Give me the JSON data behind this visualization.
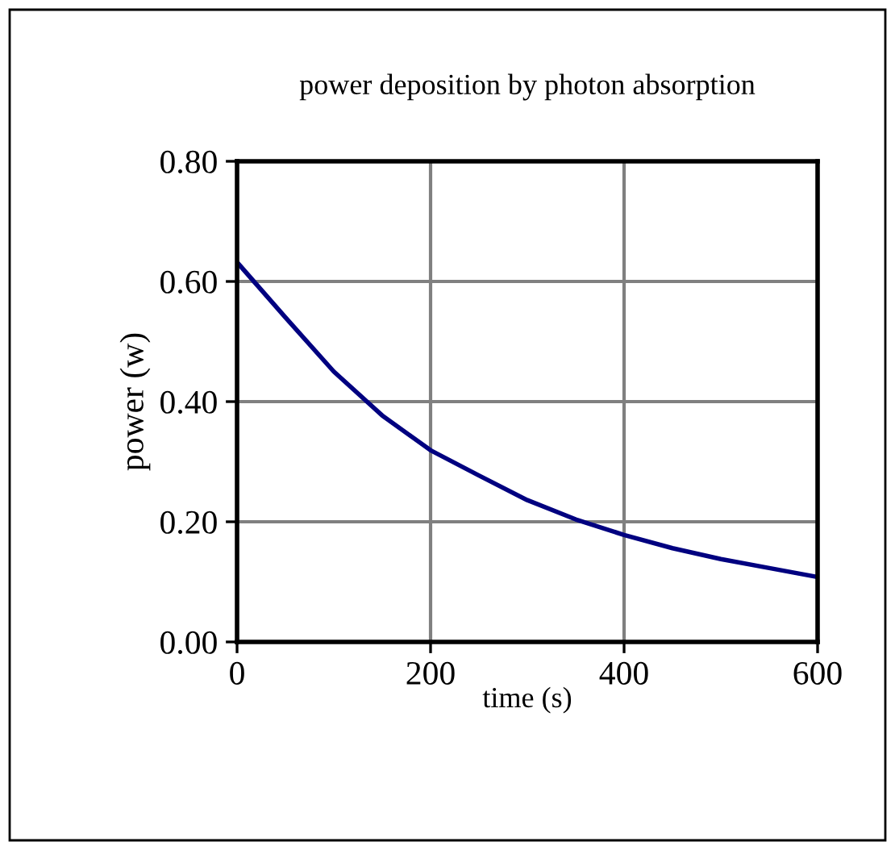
{
  "chart_data": {
    "type": "line",
    "title": "power deposition by photon absorption",
    "xlabel": "time (s)",
    "ylabel": "power (w)",
    "x": [
      0,
      50,
      100,
      150,
      200,
      250,
      300,
      350,
      400,
      450,
      500,
      550,
      600
    ],
    "series": [
      {
        "color": "#000080",
        "values": [
          0.632,
          0.54,
          0.45,
          0.377,
          0.319,
          0.277,
          0.236,
          0.204,
          0.178,
          0.156,
          0.138,
          0.123,
          0.108
        ]
      }
    ],
    "xlim": [
      0,
      600
    ],
    "ylim": [
      0,
      0.8
    ],
    "xticks": [
      0,
      200,
      400,
      600
    ],
    "yticks": [
      {
        "value": 0,
        "label": "0.00"
      },
      {
        "value": 0.2,
        "label": "0.20"
      },
      {
        "value": 0.4,
        "label": "0.40"
      },
      {
        "value": 0.6,
        "label": "0.60"
      },
      {
        "value": 0.8,
        "label": "0.80"
      }
    ],
    "grid": true,
    "marker": "none",
    "line_style": "solid",
    "legend": false
  }
}
